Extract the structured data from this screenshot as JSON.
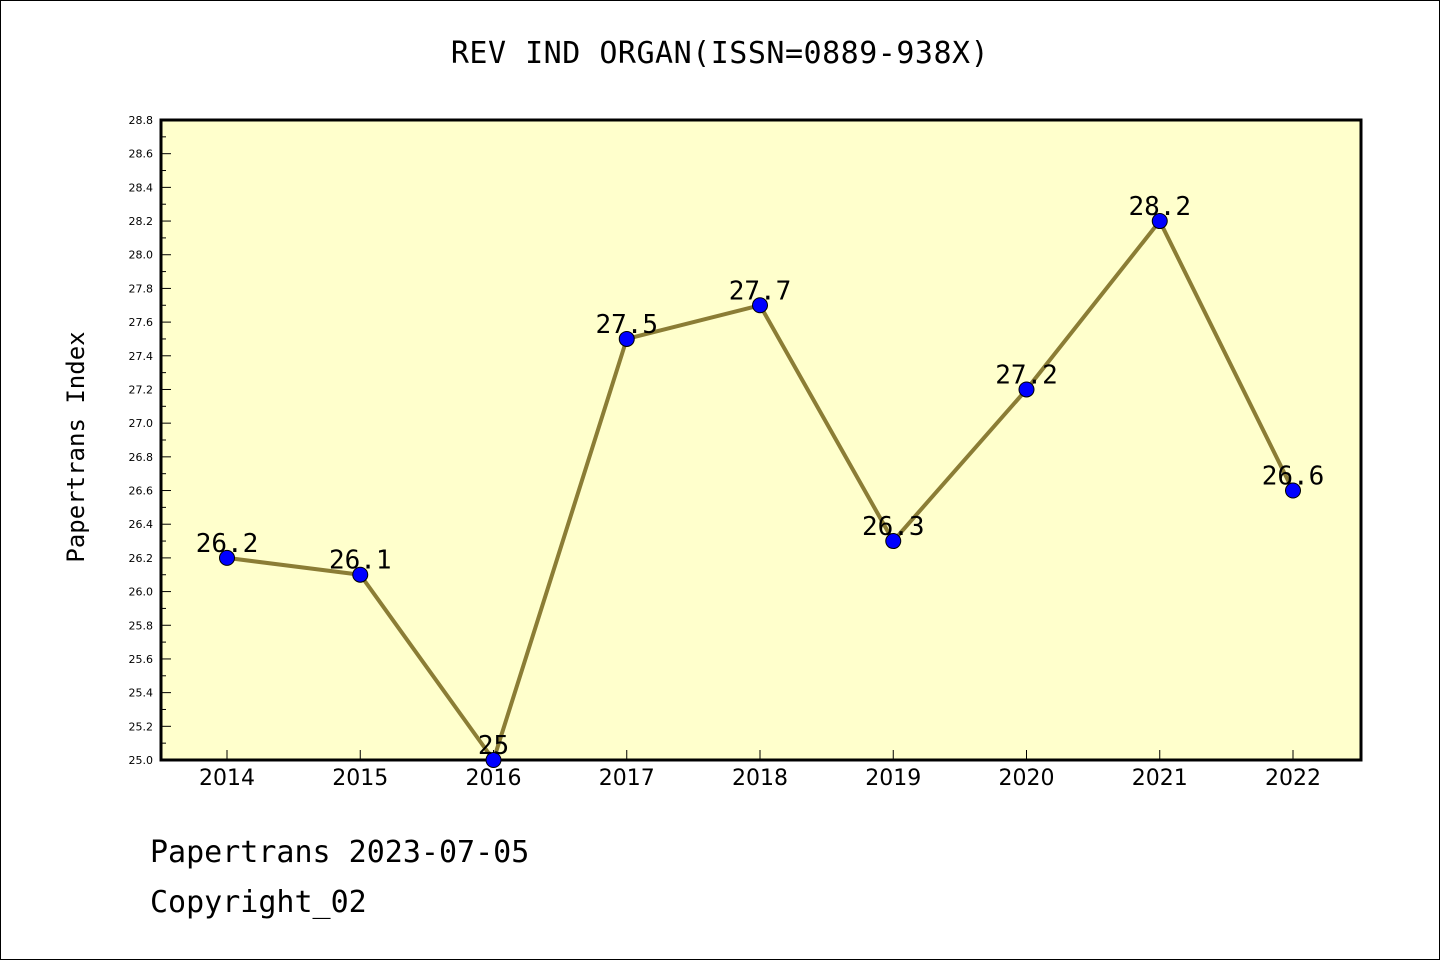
{
  "title": "REV IND ORGAN(ISSN=0889-938X)",
  "footer": {
    "date_line": "Papertrans 2023-07-05",
    "copyright_line": "Copyright_02"
  },
  "colors": {
    "plot_background": "#ffffcc",
    "line": "#8b7d35",
    "marker": "#0000ff",
    "axes": "#000000"
  },
  "chart_data": {
    "type": "line",
    "title": "REV IND ORGAN(ISSN=0889-938X)",
    "xlabel": "",
    "ylabel": "Papertrans Index",
    "categories": [
      "2014",
      "2015",
      "2016",
      "2017",
      "2018",
      "2019",
      "2020",
      "2021",
      "2022"
    ],
    "series": [
      {
        "values": [
          26.2,
          26.1,
          25.0,
          27.5,
          27.7,
          26.3,
          27.2,
          28.2,
          26.6
        ],
        "data_labels": [
          "26.2",
          "26.1",
          "25",
          "27.5",
          "27.7",
          "26.3",
          "27.2",
          "28.2",
          "26.6"
        ]
      }
    ],
    "ylim": [
      25.0,
      28.8
    ],
    "y_ticks": [
      "25.0",
      "25.2",
      "25.4",
      "25.6",
      "25.8",
      "26.0",
      "26.2",
      "26.4",
      "26.6",
      "26.8",
      "27.0",
      "27.2",
      "27.4",
      "27.6",
      "27.8",
      "28.0",
      "28.2",
      "28.4",
      "28.6",
      "28.8"
    ],
    "grid": false,
    "legend": "none"
  }
}
